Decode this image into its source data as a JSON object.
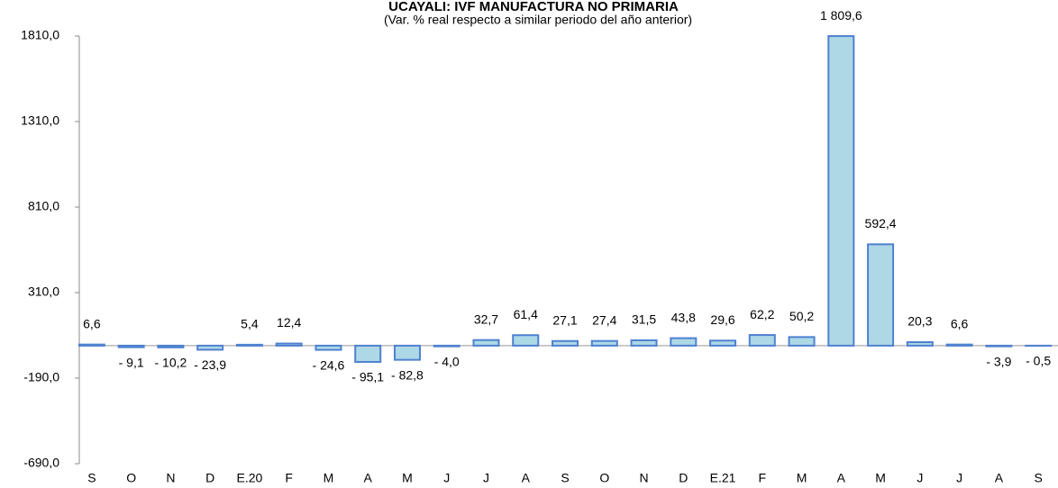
{
  "chart_data": {
    "type": "bar",
    "title": "UCAYALI: IVF MANUFACTURA NO PRIMARIA",
    "subtitle": "(Var. % real respecto a similar periodo del año anterior)",
    "categories": [
      "S",
      "O",
      "N",
      "D",
      "E.20",
      "F",
      "M",
      "A",
      "M",
      "J",
      "J",
      "A",
      "S",
      "O",
      "N",
      "D",
      "E.21",
      "F",
      "M",
      "A",
      "M",
      "J",
      "J",
      "A",
      "S"
    ],
    "values": [
      6.6,
      -9.1,
      -10.2,
      -23.9,
      5.4,
      12.4,
      -24.6,
      -95.1,
      -82.8,
      -4.0,
      32.7,
      61.4,
      27.1,
      27.4,
      31.5,
      43.8,
      29.6,
      62.2,
      50.2,
      1809.6,
      592.4,
      20.3,
      6.6,
      -3.9,
      -0.5
    ],
    "value_labels": [
      "6,6",
      "- 9,1",
      "- 10,2",
      "- 23,9",
      "5,4",
      "12,4",
      "- 24,6",
      "- 95,1",
      "- 82,8",
      "- 4,0",
      "32,7",
      "61,4",
      "27,1",
      "27,4",
      "31,5",
      "43,8",
      "29,6",
      "62,2",
      "50,2",
      "1 809,6",
      "592,4",
      "20,3",
      "6,6",
      "- 3,9",
      "- 0,5"
    ],
    "color": "#add8e6",
    "edge_color": "#4f81d0",
    "ylim": [
      -690,
      1810
    ],
    "yticks": [
      {
        "value": -690,
        "label": "-690,0"
      },
      {
        "value": -190,
        "label": "-190,0"
      },
      {
        "value": 310,
        "label": "310,0"
      },
      {
        "value": 810,
        "label": "810,0"
      },
      {
        "value": 1310,
        "label": "1310,0"
      },
      {
        "value": 1810,
        "label": "1810,0"
      }
    ],
    "grid": false
  }
}
